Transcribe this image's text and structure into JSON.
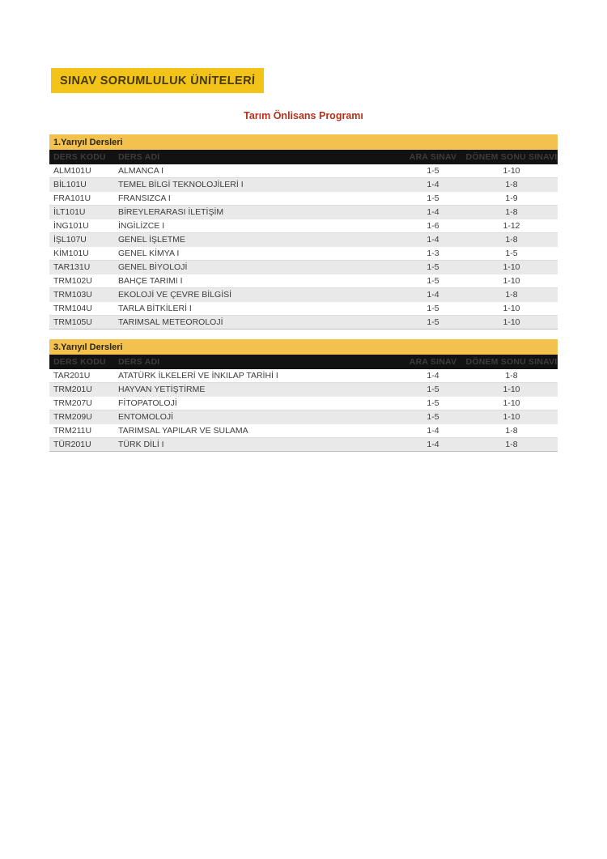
{
  "banner": {
    "title": "SINAV SORUMLULUK ÜNİTELERİ"
  },
  "subtitle": "Tarım Önlisans Programı",
  "colors": {
    "banner_bg": "#F2C318",
    "banner_text": "#473A08",
    "subtitle_text": "#B5301D",
    "section_band_bg": "#F2C14E",
    "table_header_bg": "#121212",
    "table_header_text": "#FFFFFF",
    "row_alt_bg": "#E9E9E9"
  },
  "tables": [
    {
      "section_title": "1.Yarıyıl Dersleri",
      "columns": [
        "DERS KODU",
        "DERS ADI",
        "ARA SINAV",
        "DÖNEM SONU SINAVI"
      ],
      "rows": [
        [
          "ALM101U",
          "ALMANCA I",
          "1-5",
          "1-10"
        ],
        [
          "BİL101U",
          "TEMEL BİLGİ TEKNOLOJİLERİ I",
          "1-4",
          "1-8"
        ],
        [
          "FRA101U",
          "FRANSIZCA I",
          "1-5",
          "1-9"
        ],
        [
          "İLT101U",
          "BİREYLERARASI İLETİŞİM",
          "1-4",
          "1-8"
        ],
        [
          "İNG101U",
          "İNGİLİZCE I",
          "1-6",
          "1-12"
        ],
        [
          "İŞL107U",
          "GENEL İŞLETME",
          "1-4",
          "1-8"
        ],
        [
          "KİM101U",
          "GENEL KİMYA I",
          "1-3",
          "1-5"
        ],
        [
          "TAR131U",
          "GENEL BİYOLOJİ",
          "1-5",
          "1-10"
        ],
        [
          "TRM102U",
          "BAHÇE TARIMI I",
          "1-5",
          "1-10"
        ],
        [
          "TRM103U",
          "EKOLOJİ VE ÇEVRE BİLGİSİ",
          "1-4",
          "1-8"
        ],
        [
          "TRM104U",
          "TARLA BİTKİLERİ I",
          "1-5",
          "1-10"
        ],
        [
          "TRM105U",
          "TARIMSAL METEOROLOJİ",
          "1-5",
          "1-10"
        ]
      ]
    },
    {
      "section_title": "3.Yarıyıl Dersleri",
      "columns": [
        "DERS KODU",
        "DERS ADI",
        "ARA SINAV",
        "DÖNEM SONU SINAVI"
      ],
      "rows": [
        [
          "TAR201U",
          "ATATÜRK İLKELERİ VE İNKILAP TARİHİ I",
          "1-4",
          "1-8"
        ],
        [
          "TRM201U",
          "HAYVAN YETİŞTİRME",
          "1-5",
          "1-10"
        ],
        [
          "TRM207U",
          "FİTOPATOLOJİ",
          "1-5",
          "1-10"
        ],
        [
          "TRM209U",
          "ENTOMOLOJİ",
          "1-5",
          "1-10"
        ],
        [
          "TRM211U",
          "TARIMSAL YAPILAR VE SULAMA",
          "1-4",
          "1-8"
        ],
        [
          "TÜR201U",
          "TÜRK DİLİ I",
          "1-4",
          "1-8"
        ]
      ]
    }
  ]
}
